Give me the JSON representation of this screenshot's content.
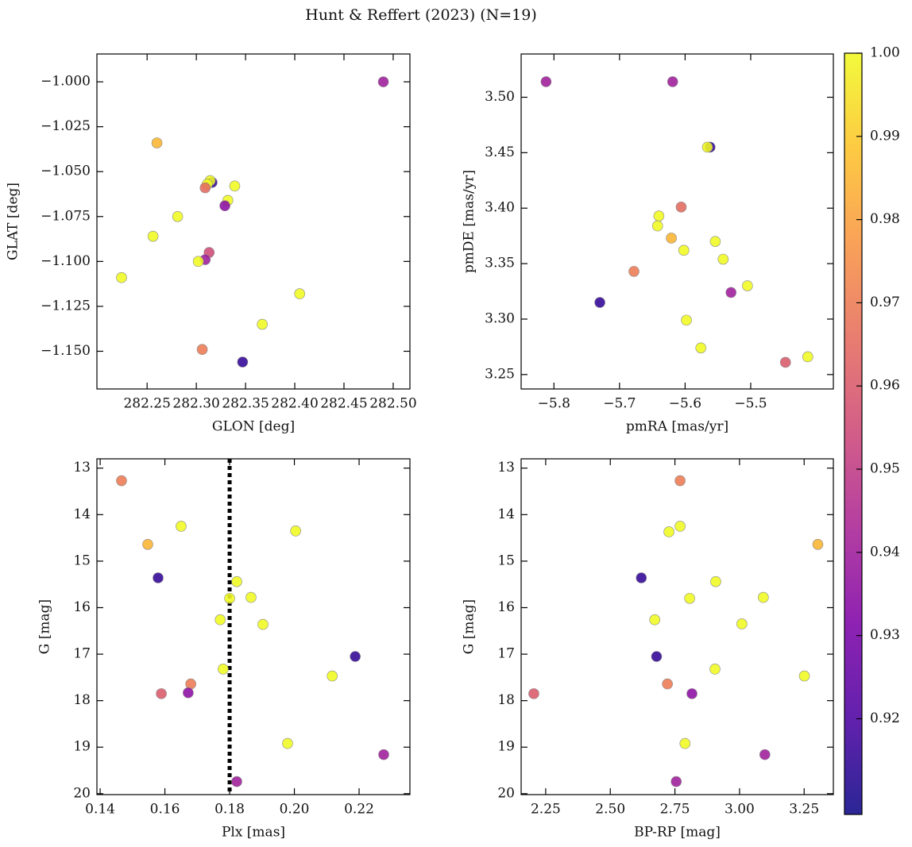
{
  "title": "Hunt & Reffert (2023) (N=19)",
  "colorbar": {
    "colormap": "plasma",
    "clim": [
      0.9085,
      1.0
    ],
    "ticks": [
      0.92,
      0.93,
      0.94,
      0.95,
      0.96,
      0.97,
      0.98,
      0.99,
      {
        "value": 1.0,
        "label": "1.00"
      }
    ]
  },
  "chart_data": [
    {
      "type": "scatter",
      "xlabel": "GLON [deg]",
      "ylabel": "GLAT [deg]",
      "x": [
        282.49,
        282.26,
        282.316,
        282.314,
        282.311,
        282.309,
        282.339,
        282.332,
        282.329,
        282.281,
        282.256,
        282.224,
        282.313,
        282.309,
        282.302,
        282.405,
        282.367,
        282.306,
        282.347
      ],
      "y": [
        -1.0,
        -1.034,
        -1.056,
        -1.055,
        -1.057,
        -1.059,
        -1.058,
        -1.066,
        -1.069,
        -1.075,
        -1.086,
        -1.109,
        -1.095,
        -1.099,
        -1.1,
        -1.118,
        -1.135,
        -1.149,
        -1.156
      ],
      "c": [
        0.94,
        0.985,
        0.915,
        1.0,
        1.0,
        0.965,
        1.0,
        1.0,
        0.935,
        1.0,
        1.0,
        1.0,
        0.955,
        0.94,
        1.0,
        1.0,
        1.0,
        0.97,
        0.915
      ],
      "xlim": [
        282.199,
        282.517
      ],
      "ylim": [
        -1.171,
        -0.9845
      ],
      "xticks": [
        282.25,
        {
          "value": 282.3,
          "label": "282.30"
        },
        282.35,
        {
          "value": 282.4,
          "label": "282.40"
        },
        282.45,
        {
          "value": 282.5,
          "label": "282.50"
        }
      ],
      "yticks": [
        {
          "value": -1.0,
          "label": "−1.000"
        },
        {
          "value": -1.025,
          "label": "−1.025"
        },
        {
          "value": -1.05,
          "label": "−1.050"
        },
        {
          "value": -1.075,
          "label": "−1.075"
        },
        {
          "value": -1.1,
          "label": "−1.100"
        },
        {
          "value": -1.125,
          "label": "−1.125"
        },
        {
          "value": -1.15,
          "label": "−1.150"
        }
      ]
    },
    {
      "type": "scatter",
      "xlabel": "pmRA [mas/yr]",
      "ylabel": "pmDE [mas/yr]",
      "x": [
        -5.812,
        -5.619,
        -5.562,
        -5.566,
        -5.606,
        -5.64,
        -5.642,
        -5.621,
        -5.554,
        -5.602,
        -5.542,
        -5.505,
        -5.678,
        -5.53,
        -5.73,
        -5.598,
        -5.576,
        -5.447,
        -5.413
      ],
      "y": [
        3.514,
        3.514,
        3.455,
        3.455,
        3.401,
        3.393,
        3.384,
        3.373,
        3.37,
        3.362,
        3.354,
        3.33,
        3.343,
        3.324,
        3.315,
        3.299,
        3.274,
        3.261,
        3.266
      ],
      "c": [
        0.94,
        0.94,
        0.915,
        1.0,
        0.965,
        1.0,
        1.0,
        0.985,
        1.0,
        1.0,
        1.0,
        1.0,
        0.97,
        0.94,
        0.915,
        1.0,
        1.0,
        0.96,
        1.0
      ],
      "xlim": [
        -5.85,
        -5.374
      ],
      "ylim": [
        3.237,
        3.539
      ],
      "xticks": [
        {
          "value": -5.8,
          "label": "−5.8"
        },
        {
          "value": -5.7,
          "label": "−5.7"
        },
        {
          "value": -5.6,
          "label": "−5.6"
        },
        {
          "value": -5.5,
          "label": "−5.5"
        }
      ],
      "yticks": [
        3.25,
        {
          "value": 3.3,
          "label": "3.30"
        },
        3.35,
        {
          "value": 3.4,
          "label": "3.40"
        },
        3.45,
        {
          "value": 3.5,
          "label": "3.50"
        }
      ]
    },
    {
      "type": "scatter",
      "xlabel": "Plx [mas]",
      "ylabel": "G [mag]",
      "vline": 0.18,
      "x": [
        0.1466,
        0.165,
        0.1547,
        0.2004,
        0.1579,
        0.1822,
        0.18,
        0.1866,
        0.1771,
        0.1903,
        0.2188,
        0.178,
        0.2117,
        0.168,
        0.1589,
        0.1672,
        0.2276,
        0.1979,
        0.1822
      ],
      "y": [
        13.27,
        14.25,
        14.64,
        14.35,
        15.36,
        15.44,
        15.8,
        15.78,
        16.26,
        16.36,
        17.05,
        17.32,
        17.47,
        17.64,
        17.85,
        17.83,
        19.16,
        18.92,
        19.74
      ],
      "c": [
        0.97,
        1.0,
        0.985,
        1.0,
        0.915,
        1.0,
        1.0,
        1.0,
        1.0,
        1.0,
        0.915,
        1.0,
        1.0,
        0.97,
        0.96,
        0.935,
        0.94,
        1.0,
        0.94
      ],
      "xlim": [
        0.139,
        0.2357
      ],
      "ylim": [
        20.02,
        12.8
      ],
      "xticks": [
        0.14,
        0.16,
        0.18,
        {
          "value": 0.2,
          "label": "0.20"
        },
        0.22
      ],
      "yticks": [
        13,
        14,
        15,
        16,
        17,
        18,
        19,
        20
      ]
    },
    {
      "type": "scatter",
      "xlabel": "BP-RP [mag]",
      "ylabel": "G [mag]",
      "x": [
        2.77,
        2.77,
        2.727,
        3.303,
        2.62,
        2.908,
        3.092,
        2.807,
        3.009,
        2.672,
        2.679,
        2.905,
        3.251,
        2.721,
        2.816,
        2.204,
        3.098,
        2.789,
        2.755
      ],
      "y": [
        13.27,
        14.25,
        14.37,
        14.64,
        15.36,
        15.44,
        15.78,
        15.8,
        16.35,
        16.26,
        17.05,
        17.32,
        17.47,
        17.64,
        17.85,
        17.85,
        19.16,
        18.92,
        19.74
      ],
      "c": [
        0.97,
        1.0,
        1.0,
        0.985,
        0.915,
        1.0,
        1.0,
        1.0,
        1.0,
        1.0,
        0.915,
        1.0,
        1.0,
        0.97,
        0.935,
        0.96,
        0.94,
        1.0,
        0.94
      ],
      "xlim": [
        2.155,
        3.363
      ],
      "ylim": [
        20.02,
        12.8
      ],
      "xticks": [
        2.25,
        {
          "value": 2.5,
          "label": "2.50"
        },
        2.75,
        {
          "value": 3.0,
          "label": "3.00"
        },
        3.25
      ],
      "yticks": [
        13,
        14,
        15,
        16,
        17,
        18,
        19,
        20
      ]
    }
  ]
}
